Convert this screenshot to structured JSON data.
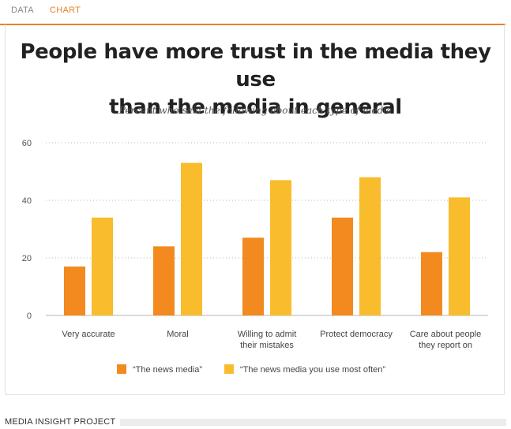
{
  "tabs": [
    {
      "label": "DATA"
    },
    {
      "label": "CHART"
    }
  ],
  "footer": {
    "label": "MEDIA INSIGHT PROJECT"
  },
  "colors": {
    "series1": "#f28a1f",
    "series2": "#f9bc2c",
    "accent": "#e8822b",
    "grid": "#b5b5b5"
  },
  "chart_data": {
    "type": "bar",
    "title": "People have more trust in the media they use than the media in general",
    "title_lines": [
      "People have more trust in the media they use",
      "than the media in general"
    ],
    "subtitle": "Percent who said the following about each type of media",
    "categories": [
      "Very accurate",
      "Moral",
      "Willing to admit their mistakes",
      "Protect democracy",
      "Care about people they report on"
    ],
    "category_lines": [
      [
        "Very accurate"
      ],
      [
        "Moral"
      ],
      [
        "Willing to admit",
        "their mistakes"
      ],
      [
        "Protect democracy"
      ],
      [
        "Care about people",
        "they report on"
      ]
    ],
    "series": [
      {
        "name": "“The news media”",
        "values": [
          17,
          24,
          27,
          34,
          22
        ]
      },
      {
        "name": "“The news media you use most often”",
        "values": [
          34,
          53,
          47,
          48,
          41
        ]
      }
    ],
    "yticks": [
      0,
      20,
      40,
      60
    ],
    "ylim": [
      0,
      60
    ],
    "xlabel": "",
    "ylabel": "",
    "grid": true,
    "legend_position": "bottom"
  }
}
